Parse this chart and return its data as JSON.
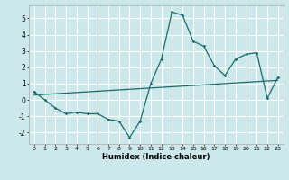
{
  "title": "",
  "xlabel": "Humidex (Indice chaleur)",
  "ylabel": "",
  "bg_color": "#cce8ea",
  "grid_color": "#ffffff",
  "line_color": "#1a6b6b",
  "xlim": [
    -0.5,
    23.5
  ],
  "ylim": [
    -2.7,
    5.8
  ],
  "xticks": [
    0,
    1,
    2,
    3,
    4,
    5,
    6,
    7,
    8,
    9,
    10,
    11,
    12,
    13,
    14,
    15,
    16,
    17,
    18,
    19,
    20,
    21,
    22,
    23
  ],
  "yticks": [
    -2,
    -1,
    0,
    1,
    2,
    3,
    4,
    5
  ],
  "data_x": [
    0,
    1,
    2,
    3,
    4,
    5,
    6,
    7,
    8,
    9,
    10,
    11,
    12,
    13,
    14,
    15,
    16,
    17,
    18,
    19,
    20,
    21,
    22,
    23
  ],
  "data_y": [
    0.5,
    0.0,
    -0.5,
    -0.85,
    -0.75,
    -0.85,
    -0.85,
    -1.2,
    -1.3,
    -2.3,
    -1.3,
    1.0,
    2.5,
    5.4,
    5.2,
    3.6,
    3.3,
    2.1,
    1.5,
    2.5,
    2.8,
    2.9,
    0.1,
    1.4
  ],
  "trend_x": [
    0,
    23
  ],
  "trend_y": [
    0.3,
    1.2
  ]
}
